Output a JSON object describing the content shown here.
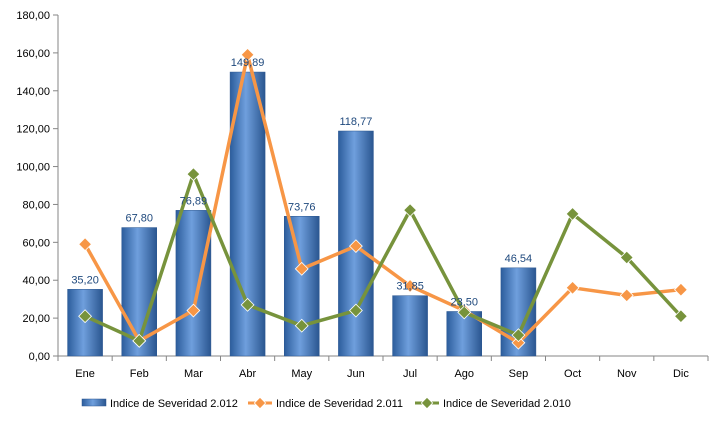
{
  "chart_data": {
    "type": "bar",
    "categories": [
      "Ene",
      "Feb",
      "Mar",
      "Abr",
      "May",
      "Jun",
      "Jul",
      "Ago",
      "Sep",
      "Oct",
      "Nov",
      "Dic"
    ],
    "ylim": [
      0,
      180
    ],
    "yticks": [
      "0,00",
      "20,00",
      "40,00",
      "60,00",
      "80,00",
      "100,00",
      "120,00",
      "140,00",
      "160,00",
      "180,00"
    ],
    "grid": false,
    "legend_position": "bottom",
    "series": [
      {
        "name": "Indice de Severidad 2.012",
        "type": "bar",
        "color": "#4F81BD",
        "values": [
          35.2,
          67.8,
          76.89,
          149.89,
          73.76,
          118.77,
          31.85,
          23.5,
          46.54,
          null,
          null,
          null
        ],
        "labels": [
          "35,20",
          "67,80",
          "76,89",
          "149,89",
          "73,76",
          "118,77",
          "31,85",
          "23,50",
          "46,54",
          "",
          "",
          ""
        ]
      },
      {
        "name": "Indice de Severidad 2.011",
        "type": "line",
        "color": "#F79646",
        "values": [
          59,
          8,
          24,
          159,
          46,
          58,
          37,
          24,
          7,
          36,
          32,
          35
        ]
      },
      {
        "name": "Indice de Severidad 2.010",
        "type": "line",
        "color": "#77933C",
        "values": [
          21,
          8,
          96,
          27,
          16,
          24,
          77,
          23,
          11,
          75,
          52,
          21
        ]
      }
    ]
  }
}
